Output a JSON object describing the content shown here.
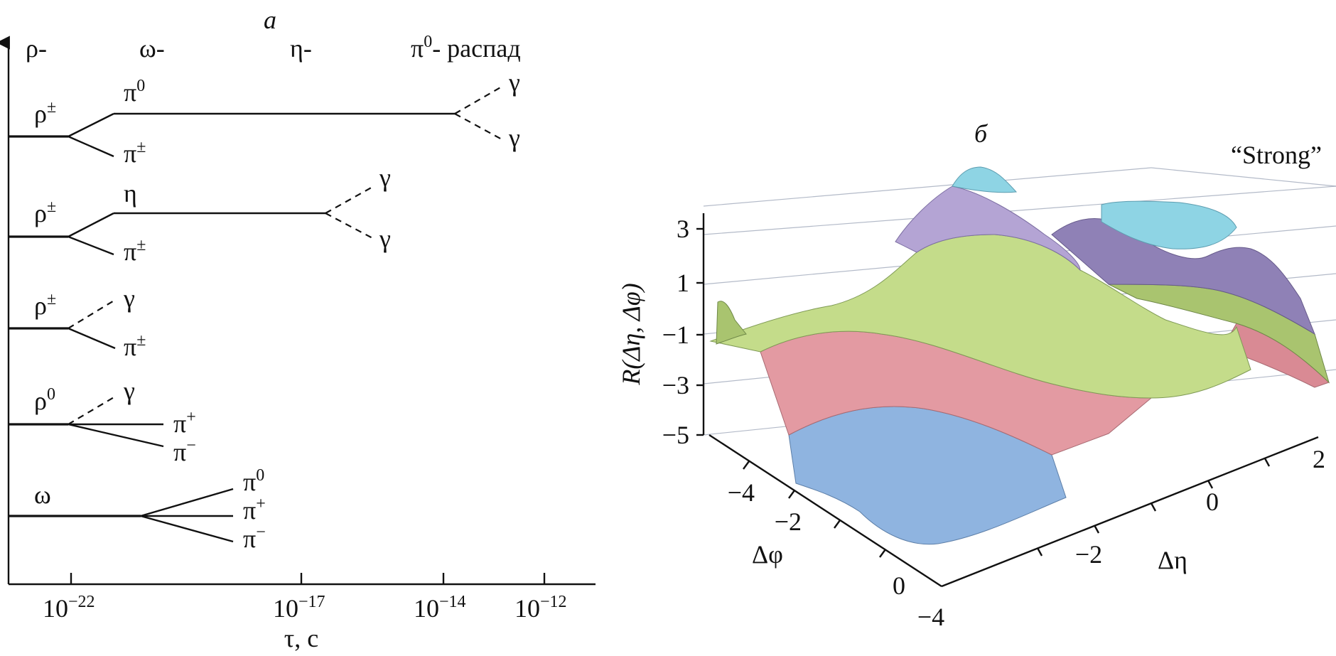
{
  "panel_a": {
    "label": "а",
    "decays_header": [
      "ρ-",
      "ω-",
      "η-"
    ],
    "pi0_header_base": "π",
    "pi0_header_sup": "0",
    "pi0_header_tail": "- распад",
    "x_ticks": [
      {
        "base": "10",
        "exp": "−22"
      },
      {
        "base": "10",
        "exp": "−17"
      },
      {
        "base": "10",
        "exp": "−14"
      },
      {
        "base": "10",
        "exp": "−12"
      }
    ],
    "x_label": "τ, с",
    "rows": [
      {
        "parent": "ρ",
        "parent_sup": "±",
        "d1": "π",
        "d1_sup": "0",
        "d2": "π",
        "d2_sup": "±",
        "g1": "γ",
        "g2": "γ"
      },
      {
        "parent": "ρ",
        "parent_sup": "±",
        "d1": "η",
        "d1_sup": "",
        "d2": "π",
        "d2_sup": "±",
        "g1": "γ",
        "g2": "γ"
      },
      {
        "parent": "ρ",
        "parent_sup": "±",
        "d1": "γ",
        "d1_sup": "",
        "d2": "π",
        "d2_sup": "±"
      },
      {
        "parent": "ρ",
        "parent_sup": "0",
        "d1": "γ",
        "d1_sup": "",
        "d2": "π",
        "d2_sup": "+",
        "d3": "π",
        "d3_sup": "−"
      },
      {
        "parent": "ω",
        "parent_sup": "",
        "d1": "π",
        "d1_sup": "0",
        "d2": "π",
        "d2_sup": "+",
        "d3": "π",
        "d3_sup": "−"
      }
    ]
  },
  "panel_b": {
    "label": "б",
    "title": "“Strong”",
    "z_label": "R(Δη, Δφ)",
    "z_ticks": [
      "3",
      "1",
      "−1",
      "−3",
      "−5"
    ],
    "phi_label": "Δφ",
    "phi_ticks": [
      "−4",
      "−2",
      "0"
    ],
    "eta_label": "Δη",
    "eta_ticks": [
      "−4",
      "−2",
      "0",
      "2"
    ],
    "surface_colors": {
      "lowest": "#8fb4e0",
      "low": "#e39aa2",
      "mid": "#c4dc8a",
      "high": "#b4a4d4",
      "top": "#8ed4e4"
    }
  }
}
